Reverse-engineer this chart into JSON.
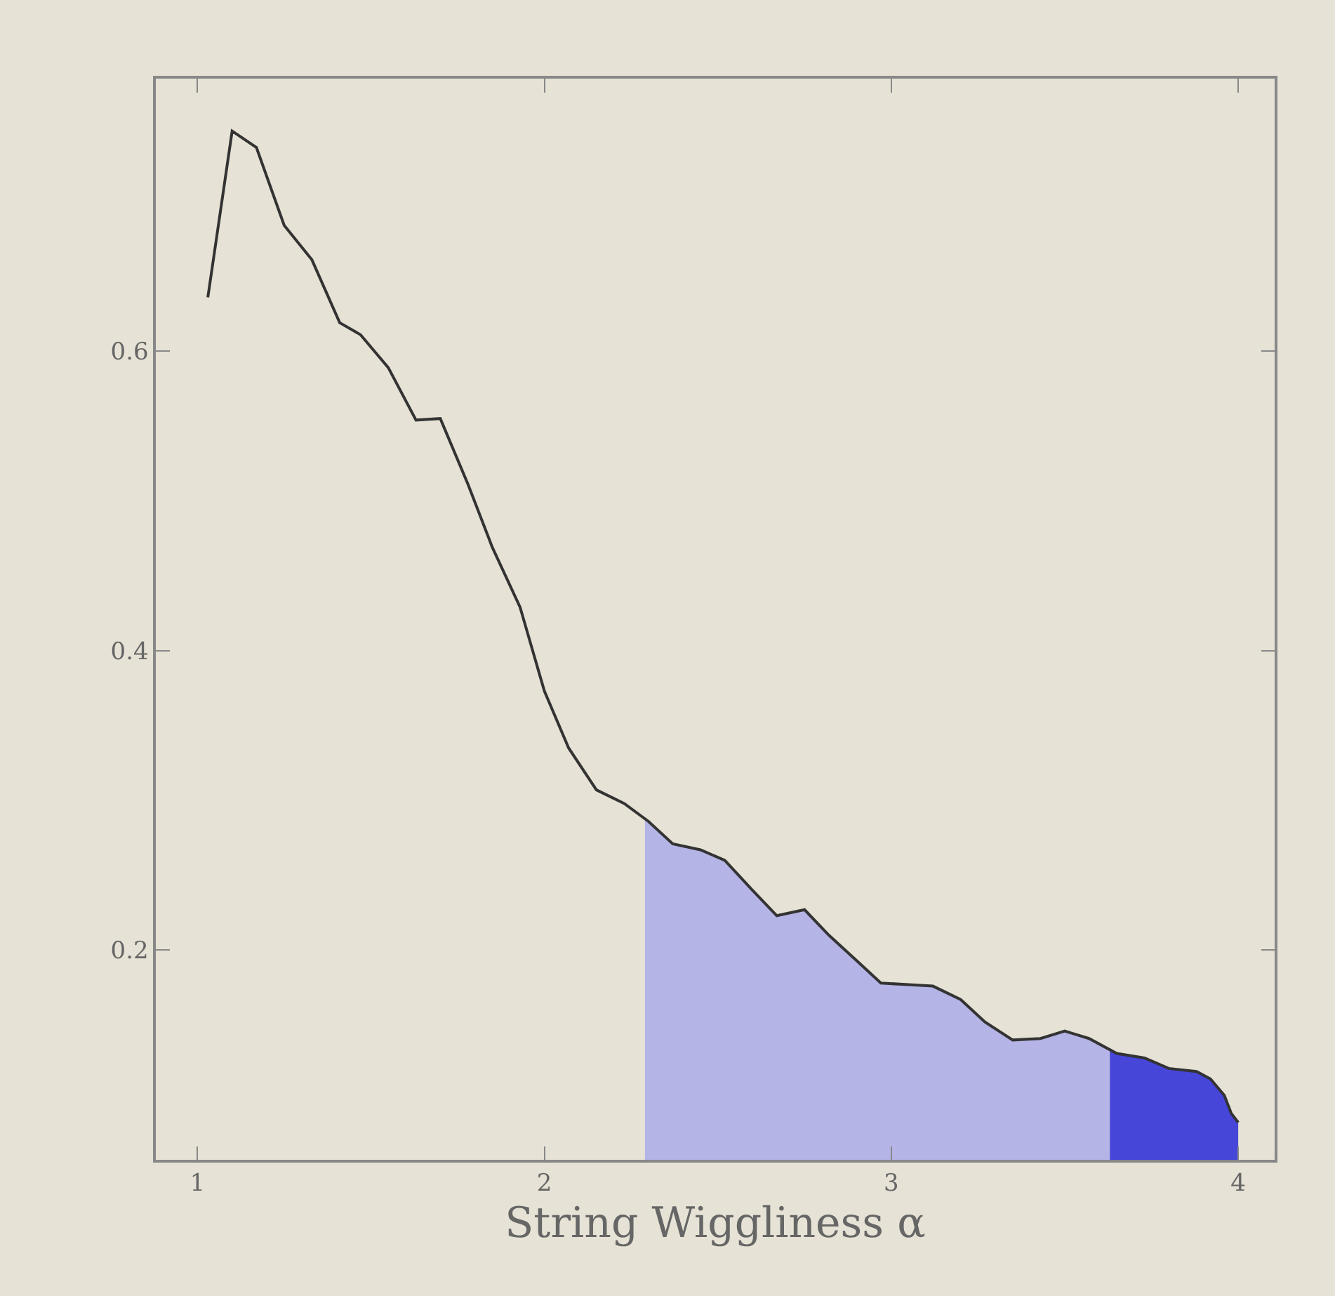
{
  "chart_data": {
    "type": "line",
    "xlabel": "String Wiggliness α",
    "xlim": [
      0.88,
      4.105
    ],
    "ylim": [
      0.06,
      0.782
    ],
    "xticks": [
      1,
      2,
      3,
      4
    ],
    "yticks": [
      0.2,
      0.4,
      0.6
    ],
    "grid": false,
    "legend": false,
    "marker": "none",
    "line_style": "solid",
    "series": [
      {
        "type": "area",
        "color": "#b4b4e6",
        "x": [
          2.29,
          2.3,
          2.37,
          2.45,
          2.52,
          2.6,
          2.67,
          2.75,
          2.82,
          2.9,
          2.97,
          3.05,
          3.12,
          3.2,
          3.27,
          3.35,
          3.43,
          3.5,
          3.57,
          3.63
        ],
        "values": [
          0.288,
          0.286,
          0.271,
          0.267,
          0.26,
          0.24,
          0.223,
          0.227,
          0.21,
          0.193,
          0.178,
          0.177,
          0.176,
          0.167,
          0.152,
          0.14,
          0.141,
          0.146,
          0.141,
          0.134
        ]
      },
      {
        "type": "area",
        "color": "#4646d8",
        "x": [
          3.63,
          3.65,
          3.73,
          3.8,
          3.88,
          3.92,
          3.96,
          3.98,
          4.0
        ],
        "values": [
          0.134,
          0.131,
          0.128,
          0.121,
          0.119,
          0.114,
          0.103,
          0.091,
          0.085
        ]
      },
      {
        "color": "#333333",
        "x": [
          1.03,
          1.1,
          1.17,
          1.25,
          1.33,
          1.41,
          1.47,
          1.55,
          1.63,
          1.7,
          1.78,
          1.85,
          1.93,
          2.0,
          2.07,
          2.15,
          2.23,
          2.3,
          2.37,
          2.45,
          2.52,
          2.6,
          2.67,
          2.75,
          2.82,
          2.9,
          2.97,
          3.05,
          3.12,
          3.2,
          3.27,
          3.35,
          3.43,
          3.5,
          3.57,
          3.65,
          3.73,
          3.8,
          3.88,
          3.92,
          3.96,
          3.98,
          4.0
        ],
        "values": [
          0.636,
          0.747,
          0.736,
          0.684,
          0.661,
          0.619,
          0.611,
          0.589,
          0.554,
          0.555,
          0.511,
          0.469,
          0.429,
          0.373,
          0.335,
          0.307,
          0.298,
          0.286,
          0.271,
          0.267,
          0.26,
          0.24,
          0.223,
          0.227,
          0.21,
          0.193,
          0.178,
          0.177,
          0.176,
          0.167,
          0.152,
          0.14,
          0.141,
          0.146,
          0.141,
          0.131,
          0.128,
          0.121,
          0.119,
          0.114,
          0.103,
          0.091,
          0.085
        ]
      }
    ]
  }
}
